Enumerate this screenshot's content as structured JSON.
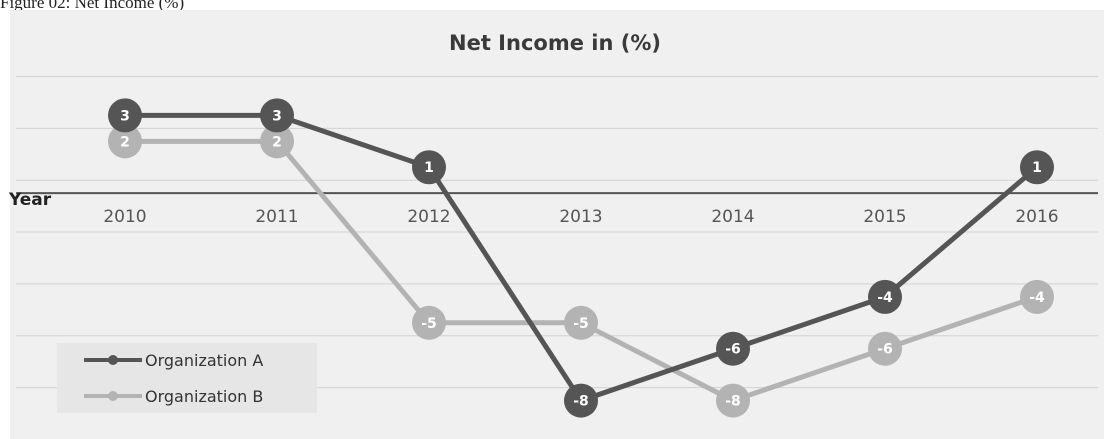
{
  "caption": "Figure 02: Net Income (%)",
  "chart_data": {
    "type": "line",
    "title": "Net Income in (%)",
    "xlabel": "Year",
    "ylabel": "",
    "categories": [
      "2010",
      "2011",
      "2012",
      "2013",
      "2014",
      "2015",
      "2016"
    ],
    "ylim": [
      -9,
      4.5
    ],
    "grid": true,
    "legend_position": "bottom-left",
    "series": [
      {
        "name": "Organization A",
        "values": [
          3,
          3,
          1,
          -8,
          -6,
          -4,
          1
        ],
        "color": "#555555"
      },
      {
        "name": "Organization B",
        "values": [
          2,
          2,
          -5,
          -5,
          -8,
          -6,
          -4
        ],
        "color": "#b3b3b3"
      }
    ]
  }
}
